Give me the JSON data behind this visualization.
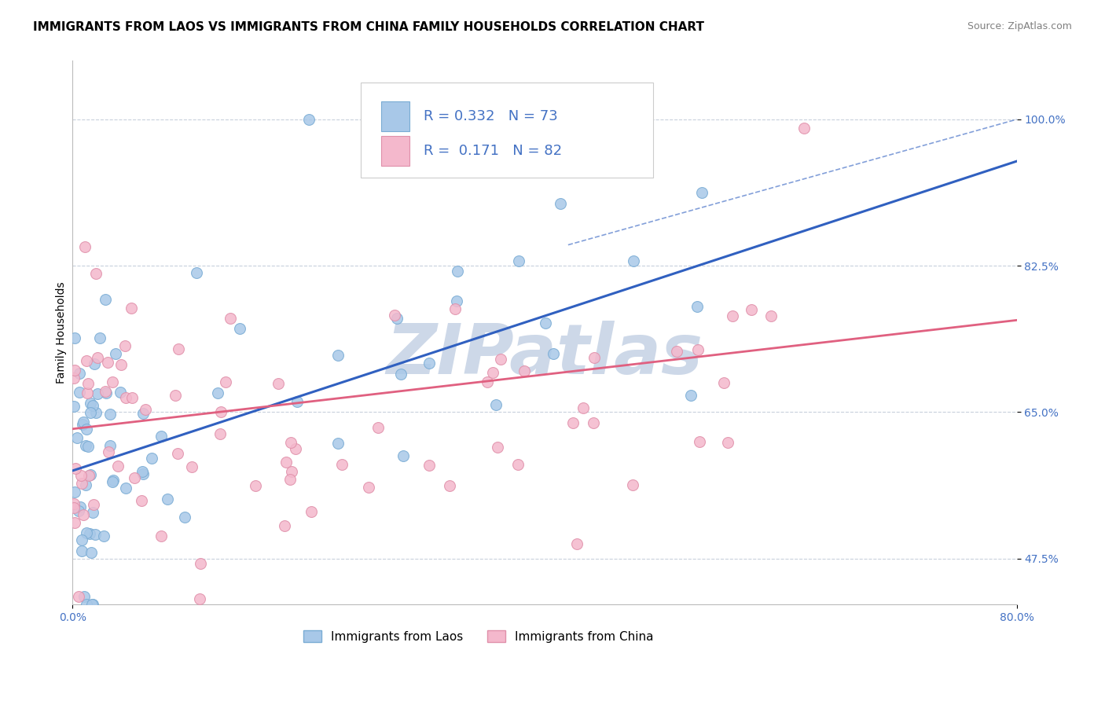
{
  "title": "IMMIGRANTS FROM LAOS VS IMMIGRANTS FROM CHINA FAMILY HOUSEHOLDS CORRELATION CHART",
  "source": "Source: ZipAtlas.com",
  "ylabel": "Family Households",
  "y_ticks": [
    47.5,
    65.0,
    82.5,
    100.0
  ],
  "y_tick_labels": [
    "47.5%",
    "65.0%",
    "82.5%",
    "100.0%"
  ],
  "xlim": [
    0.0,
    80.0
  ],
  "ylim": [
    42.0,
    107.0
  ],
  "legend_items": [
    {
      "label": "Immigrants from Laos",
      "color": "#a8c8e8",
      "edge": "#7aacd4",
      "R": "0.332",
      "N": "73"
    },
    {
      "label": "Immigrants from China",
      "color": "#f4b8cc",
      "edge": "#e090aa",
      "R": "0.171",
      "N": "82"
    }
  ],
  "laos_line_x": [
    0,
    80
  ],
  "laos_line_y": [
    58,
    95
  ],
  "china_line_x": [
    0,
    80
  ],
  "china_line_y": [
    63,
    76
  ],
  "watermark": "ZIPatlas",
  "watermark_color": "#cdd8e8",
  "background_color": "#ffffff",
  "title_fontsize": 11,
  "axis_label_fontsize": 10,
  "tick_fontsize": 10,
  "r_n_fontsize": 13,
  "laos_line_color": "#3060c0",
  "china_line_color": "#e06080",
  "tick_color": "#4472c4",
  "grid_color": "#c8d0dc",
  "source_fontsize": 9
}
